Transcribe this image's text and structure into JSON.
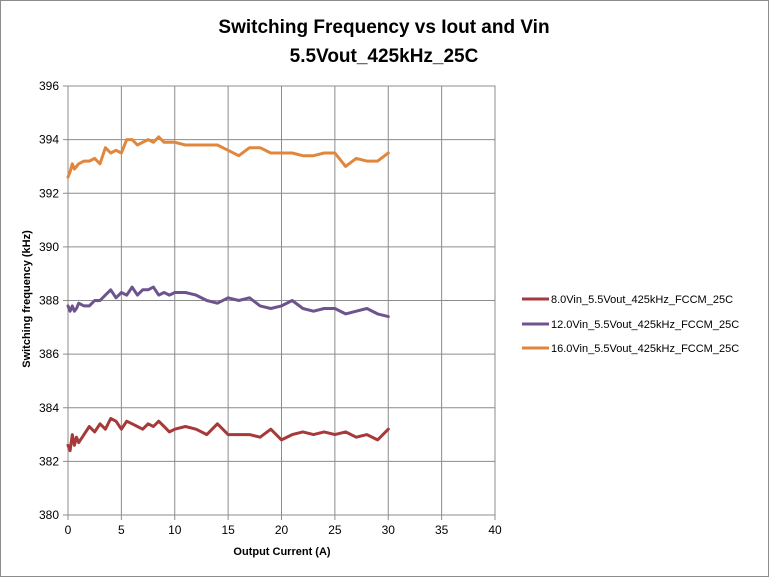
{
  "chart_data": {
    "type": "line",
    "title": "Switching Frequency vs Iout and Vin",
    "subtitle": "5.5Vout_425kHz_25C",
    "xlabel": "Output Current (A)",
    "ylabel": "Switching frequency (kHz)",
    "xlim": [
      0,
      40
    ],
    "ylim": [
      380,
      396
    ],
    "xticks": [
      0,
      5,
      10,
      15,
      20,
      25,
      30,
      35,
      40
    ],
    "yticks": [
      380,
      382,
      384,
      386,
      388,
      390,
      392,
      394,
      396
    ],
    "grid": true,
    "legend_position": "right",
    "series": [
      {
        "name": "8.0Vin_5.5Vout_425kHz_FCCM_25C",
        "color": "#a6393a",
        "x": [
          0,
          0.2,
          0.4,
          0.6,
          0.8,
          1.0,
          1.5,
          2.0,
          2.5,
          3.0,
          3.5,
          4.0,
          4.5,
          5.0,
          5.5,
          6.0,
          6.5,
          7.0,
          7.5,
          8.0,
          8.5,
          9.0,
          9.5,
          10.0,
          11.0,
          12.0,
          13.0,
          14.0,
          15.0,
          16.0,
          17.0,
          18.0,
          19.0,
          20.0,
          21.0,
          22.0,
          23.0,
          24.0,
          25.0,
          26.0,
          27.0,
          28.0,
          29.0,
          30.0
        ],
        "values": [
          382.6,
          382.4,
          383.0,
          382.6,
          382.9,
          382.7,
          383.0,
          383.3,
          383.1,
          383.4,
          383.2,
          383.6,
          383.5,
          383.2,
          383.5,
          383.4,
          383.3,
          383.2,
          383.4,
          383.3,
          383.5,
          383.3,
          383.1,
          383.2,
          383.3,
          383.2,
          383.0,
          383.4,
          383.0,
          383.0,
          383.0,
          382.9,
          383.2,
          382.8,
          383.0,
          383.1,
          383.0,
          383.1,
          383.0,
          383.1,
          382.9,
          383.0,
          382.8,
          383.2
        ]
      },
      {
        "name": "12.0Vin_5.5Vout_425kHz_FCCM_25C",
        "color": "#6e548d",
        "x": [
          0,
          0.2,
          0.4,
          0.6,
          0.8,
          1.0,
          1.5,
          2.0,
          2.5,
          3.0,
          3.5,
          4.0,
          4.5,
          5.0,
          5.5,
          6.0,
          6.5,
          7.0,
          7.5,
          8.0,
          8.5,
          9.0,
          9.5,
          10.0,
          11.0,
          12.0,
          13.0,
          14.0,
          15.0,
          16.0,
          17.0,
          18.0,
          19.0,
          20.0,
          21.0,
          22.0,
          23.0,
          24.0,
          25.0,
          26.0,
          27.0,
          28.0,
          29.0,
          30.0
        ],
        "values": [
          387.8,
          387.6,
          387.8,
          387.6,
          387.7,
          387.9,
          387.8,
          387.8,
          388.0,
          388.0,
          388.2,
          388.4,
          388.1,
          388.3,
          388.2,
          388.5,
          388.2,
          388.4,
          388.4,
          388.5,
          388.2,
          388.3,
          388.2,
          388.3,
          388.3,
          388.2,
          388.0,
          387.9,
          388.1,
          388.0,
          388.1,
          387.8,
          387.7,
          387.8,
          388.0,
          387.7,
          387.6,
          387.7,
          387.7,
          387.5,
          387.6,
          387.7,
          387.5,
          387.4
        ]
      },
      {
        "name": "16.0Vin_5.5Vout_425kHz_FCCM_25C",
        "color": "#e0873d",
        "x": [
          0,
          0.2,
          0.4,
          0.6,
          0.8,
          1.0,
          1.5,
          2.0,
          2.5,
          3.0,
          3.5,
          4.0,
          4.5,
          5.0,
          5.5,
          6.0,
          6.5,
          7.0,
          7.5,
          8.0,
          8.5,
          9.0,
          9.5,
          10.0,
          11.0,
          12.0,
          13.0,
          14.0,
          15.0,
          16.0,
          17.0,
          18.0,
          19.0,
          20.0,
          21.0,
          22.0,
          23.0,
          24.0,
          25.0,
          26.0,
          27.0,
          28.0,
          29.0,
          30.0
        ],
        "values": [
          392.6,
          392.8,
          393.1,
          392.9,
          393.0,
          393.1,
          393.2,
          393.2,
          393.3,
          393.1,
          393.7,
          393.5,
          393.6,
          393.5,
          394.0,
          394.0,
          393.8,
          393.9,
          394.0,
          393.9,
          394.1,
          393.9,
          393.9,
          393.9,
          393.8,
          393.8,
          393.8,
          393.8,
          393.6,
          393.4,
          393.7,
          393.7,
          393.5,
          393.5,
          393.5,
          393.4,
          393.4,
          393.5,
          393.5,
          393.0,
          393.3,
          393.2,
          393.2,
          393.5
        ]
      }
    ]
  }
}
